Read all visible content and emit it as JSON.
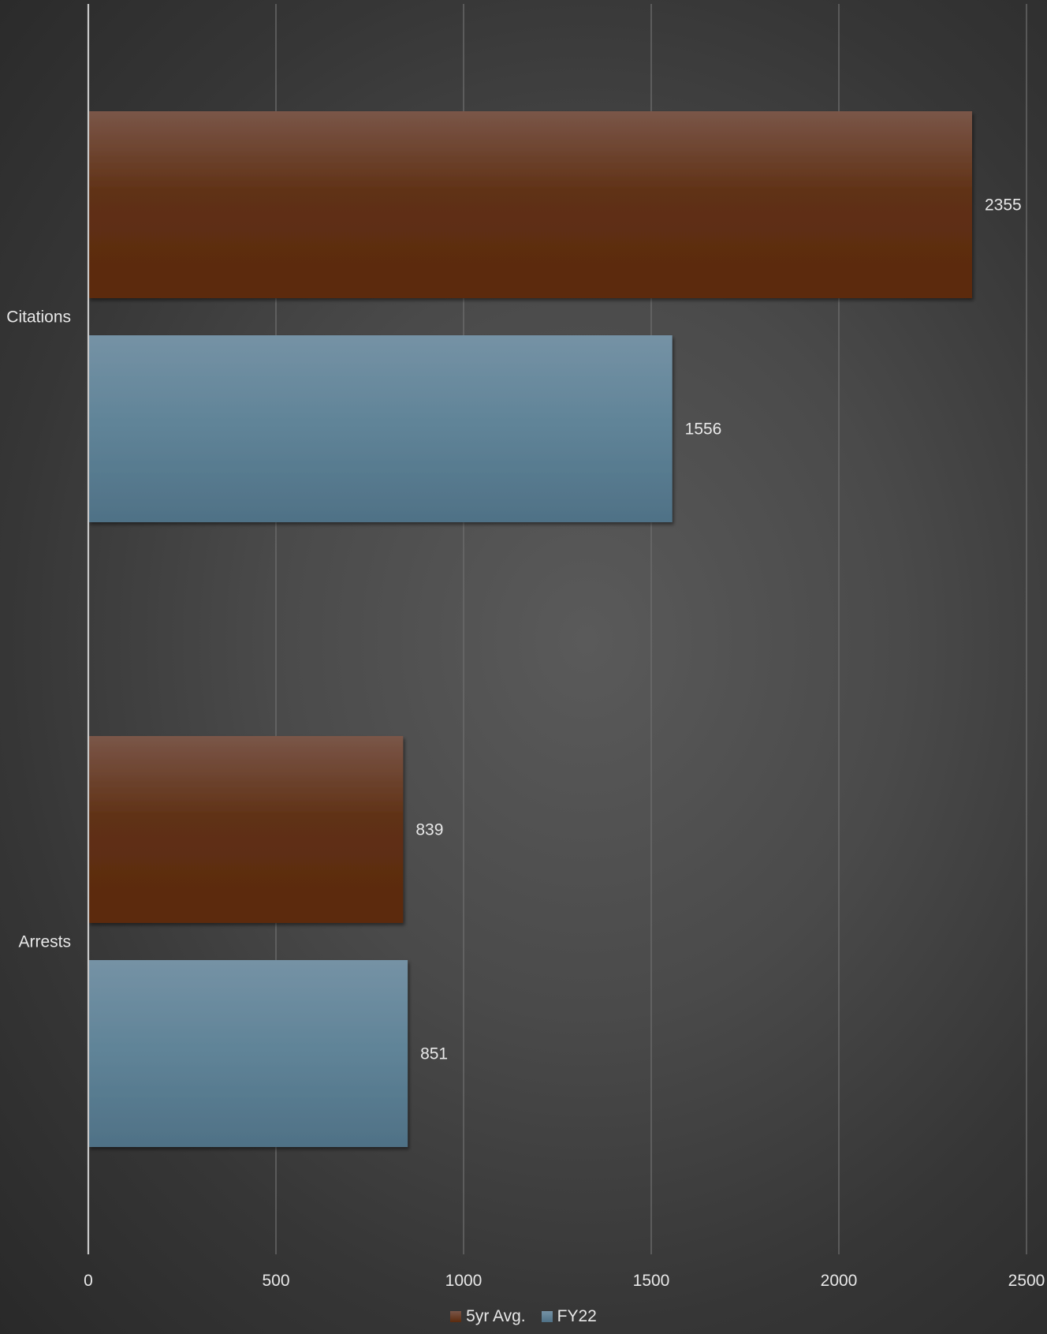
{
  "chart_data": {
    "type": "bar",
    "orientation": "horizontal",
    "categories": [
      "Citations",
      "Arrests"
    ],
    "series": [
      {
        "name": "5yr Avg.",
        "values": [
          2355,
          839
        ],
        "color": "#5e2d10"
      },
      {
        "name": "FY22",
        "values": [
          1556,
          851
        ],
        "color": "#54788f"
      }
    ],
    "data_labels": true,
    "xlim": [
      0,
      2500
    ],
    "x_ticks": [
      0,
      500,
      1000,
      1500,
      2000,
      2500
    ],
    "grid": "vertical",
    "legend": "bottom",
    "title": "",
    "xlabel": "",
    "ylabel": ""
  },
  "legend": {
    "items": [
      {
        "label": "5yr Avg.",
        "color": "#5e2d10"
      },
      {
        "label": "FY22",
        "color": "#54788f"
      }
    ]
  }
}
